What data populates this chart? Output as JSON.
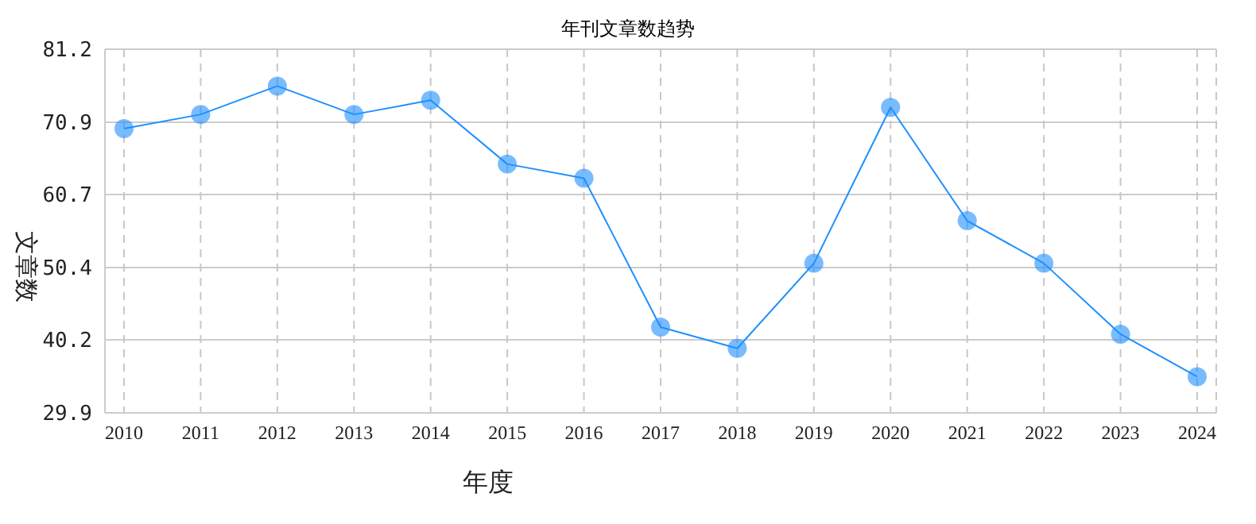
{
  "chart_data": {
    "type": "line",
    "title": "年刊文章数趋势",
    "xlabel": "年度",
    "ylabel": "文章数",
    "categories": [
      "2010",
      "2011",
      "2012",
      "2013",
      "2014",
      "2015",
      "2016",
      "2017",
      "2018",
      "2019",
      "2020",
      "2021",
      "2022",
      "2023",
      "2024"
    ],
    "series": [
      {
        "color": "#1e90ff",
        "values": [
          70,
          72,
          76,
          72,
          74,
          65,
          63,
          42,
          39,
          51,
          73,
          57,
          51,
          41,
          35
        ]
      }
    ],
    "ylim": [
      29.9,
      81.2
    ],
    "yticks": [
      29.9,
      40.2,
      50.4,
      60.7,
      70.9,
      81.2
    ],
    "grid": true,
    "legend": false,
    "marker": "circle",
    "line_style": "solid"
  }
}
